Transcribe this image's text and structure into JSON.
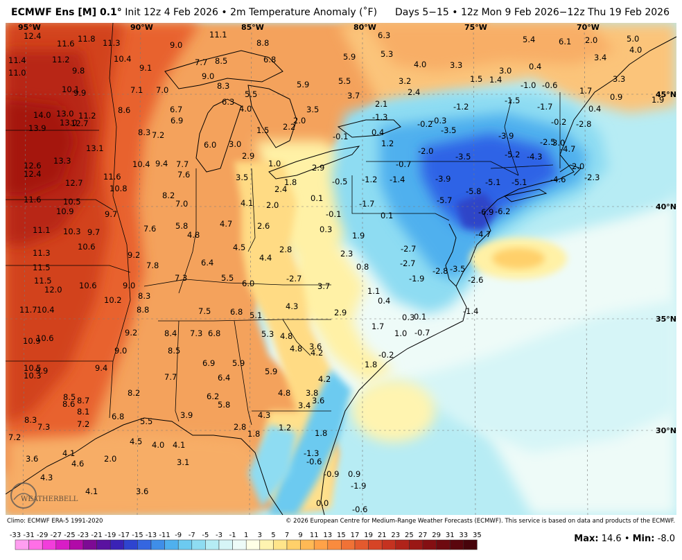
{
  "header": {
    "model": "ECMWF Ens [M] 0.1",
    "deg": "°",
    "init": "Init 12z 4 Feb 2026",
    "sep": "•",
    "variable": "2m Temperature Anomaly (˚F)",
    "period": "Days 5−15 • 12z Mon 9 Feb 2026−12z Thu 19 Feb 2026"
  },
  "map": {
    "lon_labels": [
      "95°W",
      "90°W",
      "85°W",
      "80°W",
      "75°W",
      "70°W"
    ],
    "lat_labels": [
      "45°N",
      "40°N",
      "35°N",
      "30°N"
    ],
    "logo_text": "WEATHERBELL",
    "colors": {
      "ocean": "#b7ecf4",
      "land_warm": "#f4a25c",
      "deep_red": "#a5170d",
      "cold": "#2e63e6"
    },
    "values": [
      "12.4",
      "11.6",
      "11.8",
      "11.3",
      "9.0",
      "11.1",
      "8.8",
      "6.3",
      "5.3",
      "5.4",
      "6.1",
      "2.0",
      "5.0",
      "11.4",
      "11.2",
      "10.4",
      "7.7",
      "8.5",
      "6.8",
      "5.9",
      "4.0",
      "3.3",
      "3.0",
      "0.4",
      "3.4",
      "4.0",
      "11.0",
      "9.8",
      "9.1",
      "9.0",
      "1.5",
      "1.4",
      "3.2",
      "-1.0",
      "-0.6",
      "3.3",
      "10.1",
      "9.9",
      "7.1",
      "7.0",
      "8.3",
      "5.5",
      "5.9",
      "5.5",
      "3.7",
      "2.4",
      "1.7",
      "0.9",
      "1.9",
      "-1.5",
      "-1.2",
      "6.3",
      "4.0",
      "3.5",
      "2.1",
      "-1.7",
      "0.4",
      "14.0",
      "13.0",
      "11.2",
      "8.6",
      "6.7",
      "2.0",
      "-1.3",
      "-0.2",
      "-0.3",
      "-0.2",
      "13.9",
      "13.0",
      "12.7",
      "6.9",
      "1.5",
      "2.2",
      "-3.5",
      "-2.8",
      "8.3",
      "7.2",
      "-0.1",
      "0.4",
      "-3.9",
      "-2.5",
      "3.0",
      "13.1",
      "6.0",
      "3.0",
      "1.2",
      "-2.0",
      "-4.7",
      "2.9",
      "-3.5",
      "-5.2",
      "-4.3",
      "12.6",
      "13.3",
      "10.4",
      "9.4",
      "7.7",
      "1.0",
      "2.9",
      "-0.7",
      "2.0",
      "12.4",
      "7.6",
      "11.6",
      "3.5",
      "1.8",
      "-0.5",
      "-1.2",
      "-1.4",
      "-3.9",
      "-5.1",
      "-5.1",
      "-4.6",
      "-2.3",
      "12.7",
      "10.8",
      "2.4",
      "0.1",
      "-5.8",
      "11.6",
      "8.2",
      "-1.7",
      "-5.7",
      "10.5",
      "7.0",
      "4.1",
      "2.0",
      "10.9",
      "9.7",
      "-6.9",
      "-6.2",
      "5.8",
      "4.7",
      "0.1",
      "-0.1",
      "11.1",
      "10.3",
      "9.7",
      "7.6",
      "4.8",
      "2.6",
      "0.3",
      "1.9",
      "-4.7",
      "10.6",
      "4.5",
      "4.4",
      "2.8",
      "-2.7",
      "11.3",
      "9.2",
      "6.4",
      "2.3",
      "-2.7",
      "11.5",
      "7.8",
      "0.8",
      "-3.5",
      "-2.8",
      "7.3",
      "5.5",
      "6.0",
      "-2.7",
      "3.7",
      "-1.9",
      "-2.6",
      "11.5",
      "10.6",
      "9.0",
      "12.0",
      "8.3",
      "1.1",
      "0.4",
      "10.2",
      "4.3",
      "11.7",
      "10.4",
      "8.8",
      "7.5",
      "6.8",
      "5.1",
      "2.9",
      "-1.4",
      "0.3",
      "0.1",
      "1.7",
      "9.2",
      "8.4",
      "7.3",
      "6.8",
      "5.3",
      "4.8",
      "1.0",
      "-0.7",
      "10.9",
      "10.6",
      "9.0",
      "8.5",
      "4.8",
      "3.6",
      "4.2",
      "-0.2",
      "6.9",
      "5.9",
      "1.8",
      "10.5",
      "9.9",
      "9.4",
      "7.7",
      "6.4",
      "5.9",
      "4.2",
      "10.3",
      "8.2",
      "4.8",
      "3.8",
      "8.5",
      "8.7",
      "6.2",
      "3.6",
      "8.6",
      "5.8",
      "3.4",
      "8.1",
      "8.3",
      "7.2",
      "6.8",
      "5.5",
      "3.9",
      "4.3",
      "7.3",
      "2.8",
      "1.8",
      "1.2",
      "1.8",
      "7.2",
      "4.5",
      "4.0",
      "4.1",
      "4.1",
      "-1.3",
      "3.6",
      "2.0",
      "3.1",
      "-0.6",
      "4.6",
      "-0.9",
      "0.9",
      "4.3",
      "-1.9",
      "4.1",
      "3.6",
      "0.0",
      "-0.6"
    ]
  },
  "credits": {
    "climo": "Climo: ECMWF ERA-5 1991-2020",
    "copyright": "© 2026 European Centre for Medium-Range Weather Forecasts (ECMWF). This service is based on data and products of the ECMWF."
  },
  "scale": {
    "ticks": [
      "-33",
      "-31",
      "-29",
      "-27",
      "-25",
      "-23",
      "-21",
      "-19",
      "-17",
      "-15",
      "-13",
      "-11",
      "-9",
      "-7",
      "-5",
      "-3",
      "-1",
      "1",
      "3",
      "5",
      "7",
      "9",
      "11",
      "13",
      "15",
      "17",
      "19",
      "21",
      "23",
      "25",
      "27",
      "29",
      "31",
      "33",
      "35"
    ],
    "colors": [
      "#ff9ef0",
      "#ff6fe6",
      "#f23ddb",
      "#d81dc6",
      "#b10aa8",
      "#7d0a94",
      "#5a12a0",
      "#3a22b6",
      "#2e44cf",
      "#3566e0",
      "#3f8ee8",
      "#4fb0ee",
      "#6ccaf0",
      "#8edcf2",
      "#b5ecf4",
      "#d6f5f7",
      "#eefbf8",
      "#ffffe6",
      "#fff4b0",
      "#ffe58a",
      "#ffd06a",
      "#ffb955",
      "#ffa248",
      "#f98b3e",
      "#f07236",
      "#e45a2e",
      "#d64426",
      "#c53220",
      "#b0231a",
      "#9a1715",
      "#840f12",
      "#6e0a10",
      "#5a060d",
      "#47040b"
    ]
  },
  "stats": {
    "max_label": "Max:",
    "max_value": "14.6",
    "min_label": "Min:",
    "min_value": "-8.0"
  }
}
